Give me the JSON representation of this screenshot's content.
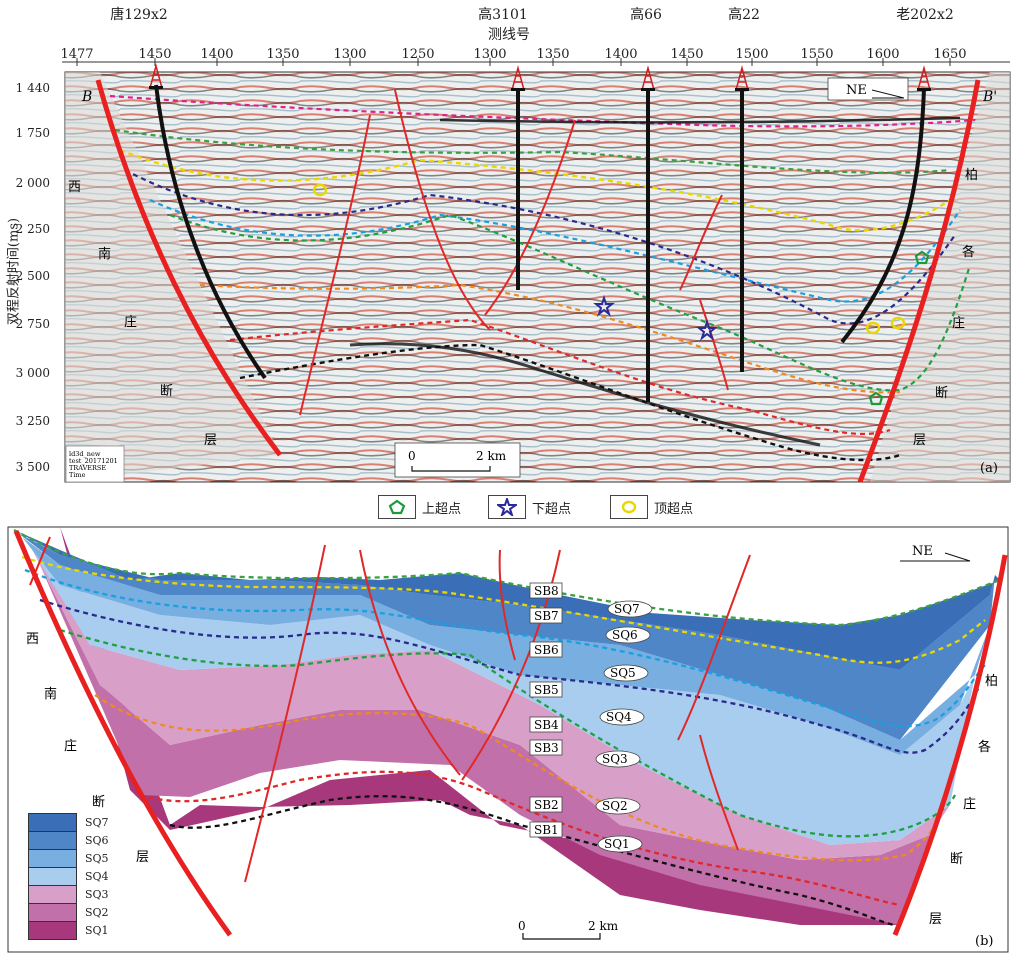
{
  "top_panel": {
    "wells": [
      {
        "name": "唐129x2",
        "x": 1445
      },
      {
        "name": "高3101",
        "x": 1319
      },
      {
        "name": "高66",
        "x": 1418
      },
      {
        "name": "高22",
        "x": 1486
      },
      {
        "name": "老202x2",
        "x": 1618
      }
    ],
    "x_axis_title": "测线号",
    "x_ticks": [
      "1477",
      "1450",
      "1400",
      "1350",
      "1300",
      "1250",
      "1300",
      "1350",
      "1400",
      "1450",
      "1500",
      "1550",
      "1600",
      "1650"
    ],
    "y_axis_title": "双程反射时间(ms)",
    "y_ticks": [
      "1 440",
      "1 750",
      "2 000",
      "2 250",
      "2 500",
      "2 750",
      "3 000",
      "3 250",
      "3 500"
    ],
    "section_start": "B",
    "section_end": "B'",
    "direction": "NE",
    "left_fault_label": [
      "西",
      "南",
      "庄",
      "断",
      "层"
    ],
    "right_fault_label": [
      "柏",
      "各",
      "庄",
      "断",
      "层"
    ],
    "scale_bar": {
      "start": "0",
      "end": "2 km"
    },
    "info_box": [
      "ld3d_new",
      "test_20171201",
      "TRAVERSE",
      "Time"
    ],
    "panel_label": "(a)"
  },
  "legend_symbols": [
    {
      "label": "上超点",
      "color": "#1a9a3a"
    },
    {
      "label": "下超点",
      "color": "#2a2a9a"
    },
    {
      "label": "顶超点",
      "color": "#e8d800"
    }
  ],
  "bottom_panel": {
    "direction": "NE",
    "boundaries": [
      "SB8",
      "SB7",
      "SB6",
      "SB5",
      "SB4",
      "SB3",
      "SB2",
      "SB1"
    ],
    "sequences": [
      "SQ7",
      "SQ6",
      "SQ5",
      "SQ4",
      "SQ3",
      "SQ2",
      "SQ1"
    ],
    "left_fault_label": [
      "西",
      "南",
      "庄",
      "断",
      "层"
    ],
    "right_fault_label": [
      "柏",
      "各",
      "庄",
      "断",
      "层"
    ],
    "scale_bar": {
      "start": "0",
      "end": "2 km"
    },
    "panel_label": "(b)",
    "legend": [
      {
        "label": "SQ7",
        "color": "#3a6fb8"
      },
      {
        "label": "SQ6",
        "color": "#4e86c8"
      },
      {
        "label": "SQ5",
        "color": "#78aee0"
      },
      {
        "label": "SQ4",
        "color": "#a8cdef"
      },
      {
        "label": "SQ3",
        "color": "#d8a0c8"
      },
      {
        "label": "SQ2",
        "color": "#c270aa"
      },
      {
        "label": "SQ1",
        "color": "#a8387c"
      }
    ]
  }
}
